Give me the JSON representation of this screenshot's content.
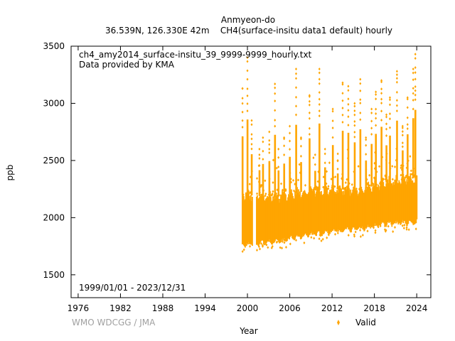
{
  "chart_data": {
    "type": "scatter",
    "title": "Anmyeon-do",
    "subtitle": "36.539N, 126.330E 42m    CH4(surface-insitu data1 default) hourly",
    "file_label": "ch4_amy2014_surface-insitu_39_9999-9999_hourly.txt",
    "provider_label": "Data provided by KMA",
    "date_range_label": "1999/01/01 - 2023/12/31",
    "credit": "WMO WDCGG / JMA",
    "xlabel": "Year",
    "ylabel": "ppb",
    "xlim": [
      1975,
      2026
    ],
    "ylim": [
      1300,
      3500
    ],
    "x_ticks": [
      1976,
      1982,
      1988,
      1994,
      2000,
      2006,
      2012,
      2018,
      2024
    ],
    "y_ticks": [
      1500,
      2000,
      2500,
      3000,
      3500
    ],
    "grid": false,
    "legend_position": "bottom-right",
    "series": [
      {
        "name": "Valid",
        "color": "#ffa500",
        "data_start": 1999.0,
        "data_end": 2024.0,
        "gap": [
          2000.75,
          2001.25
        ],
        "baseline_trend": [
          [
            1999.3,
            1760
          ],
          [
            2004,
            1790
          ],
          [
            2008,
            1840
          ],
          [
            2012,
            1880
          ],
          [
            2016,
            1900
          ],
          [
            2019,
            1940
          ],
          [
            2024,
            1960
          ]
        ],
        "upper_envelope": [
          [
            1999.3,
            2200
          ],
          [
            2004,
            2180
          ],
          [
            2008,
            2230
          ],
          [
            2012,
            2250
          ],
          [
            2016,
            2240
          ],
          [
            2019,
            2300
          ],
          [
            2024,
            2350
          ]
        ],
        "winter_spike_peaks": [
          [
            1999.3,
            3130
          ],
          [
            2000.0,
            3400
          ],
          [
            2000.6,
            2850
          ],
          [
            2001.7,
            2600
          ],
          [
            2002.2,
            2700
          ],
          [
            2003.1,
            2750
          ],
          [
            2003.9,
            3170
          ],
          [
            2004.4,
            2600
          ],
          [
            2005.2,
            2700
          ],
          [
            2006.0,
            2800
          ],
          [
            2006.9,
            3300
          ],
          [
            2007.6,
            2700
          ],
          [
            2008.8,
            3070
          ],
          [
            2009.6,
            2550
          ],
          [
            2010.2,
            3300
          ],
          [
            2011.0,
            2600
          ],
          [
            2012.1,
            2950
          ],
          [
            2012.8,
            2500
          ],
          [
            2013.5,
            3180
          ],
          [
            2014.3,
            3150
          ],
          [
            2015.2,
            3000
          ],
          [
            2016.0,
            3210
          ],
          [
            2016.8,
            2700
          ],
          [
            2017.6,
            2950
          ],
          [
            2018.2,
            3100
          ],
          [
            2019.0,
            3200
          ],
          [
            2019.7,
            2900
          ],
          [
            2020.2,
            3050
          ],
          [
            2021.2,
            3280
          ],
          [
            2022.0,
            2800
          ],
          [
            2022.7,
            3050
          ],
          [
            2023.5,
            3300
          ],
          [
            2023.8,
            3430
          ]
        ]
      }
    ]
  }
}
